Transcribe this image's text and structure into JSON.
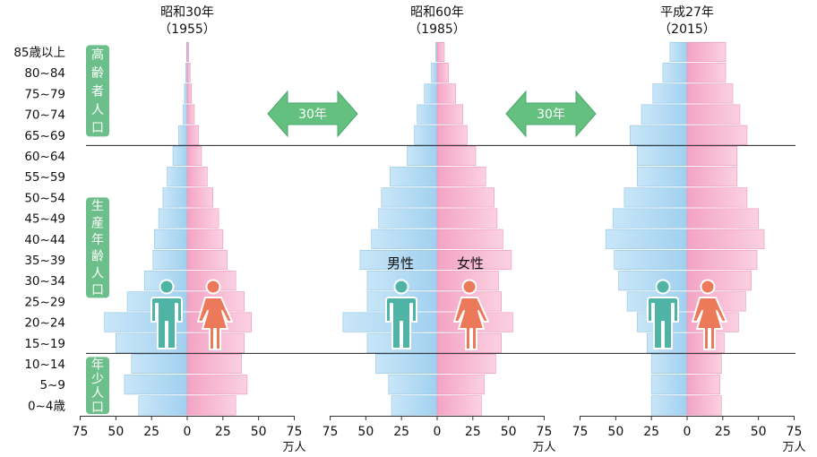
{
  "age_groups": [
    "0~4歳",
    "5~9",
    "10~14",
    "15~19",
    "20~24",
    "25~29",
    "30~34",
    "35~39",
    "40~44",
    "45~49",
    "50~54",
    "55~59",
    "60~64",
    "65~69",
    "70~74",
    "75~79",
    "80~84",
    "85歳以上"
  ],
  "category_labels": {
    "elderly": [
      "高",
      "齢",
      "者",
      "人",
      "口"
    ],
    "working": [
      "生",
      "産",
      "年",
      "齢",
      "人",
      "口"
    ],
    "young": [
      "年",
      "少",
      "人",
      "口"
    ]
  },
  "arrows": [
    "30年",
    "30年"
  ],
  "gender_labels": {
    "male": "男性",
    "female": "女性"
  },
  "axis": {
    "ticks": [
      "75",
      "50",
      "25",
      "0",
      "25",
      "50",
      "75"
    ],
    "unit": "万人"
  },
  "colors": {
    "male": "#a9d6f2",
    "female": "#f4a8c8",
    "category": "#6cbf8a",
    "arrow": "#63c07f",
    "male_figure": "#4fb3a5",
    "female_figure": "#ec7a5a"
  },
  "chart_data": [
    {
      "type": "bar",
      "title_line1": "昭和30年",
      "title_line2": "（1955）",
      "categories": [
        "0~4歳",
        "5~9",
        "10~14",
        "15~19",
        "20~24",
        "25~29",
        "30~34",
        "35~39",
        "40~44",
        "45~49",
        "50~54",
        "55~59",
        "60~64",
        "65~69",
        "70~74",
        "75~79",
        "80~84",
        "85歳以上"
      ],
      "series": [
        {
          "name": "男性",
          "values": [
            -34,
            -44,
            -39,
            -50,
            -58,
            -42,
            -30,
            -24,
            -23,
            -20,
            -17,
            -14,
            -10,
            -6,
            -3,
            -2,
            -1,
            -0.5
          ]
        },
        {
          "name": "女性",
          "values": [
            34,
            42,
            38,
            40,
            45,
            40,
            34,
            28,
            25,
            22,
            18,
            14,
            10,
            8,
            5,
            3,
            2,
            1
          ]
        }
      ],
      "xlim": [
        -75,
        75
      ],
      "xlabel": "万人"
    },
    {
      "type": "bar",
      "title_line1": "昭和60年",
      "title_line2": "（1985）",
      "categories": [
        "0~4歳",
        "5~9",
        "10~14",
        "15~19",
        "20~24",
        "25~29",
        "30~34",
        "35~39",
        "40~44",
        "45~49",
        "50~54",
        "55~59",
        "60~64",
        "65~69",
        "70~74",
        "75~79",
        "80~84",
        "85歳以上"
      ],
      "series": [
        {
          "name": "男性",
          "values": [
            -32,
            -34,
            -43,
            -49,
            -66,
            -49,
            -49,
            -54,
            -46,
            -41,
            -39,
            -33,
            -21,
            -16,
            -14,
            -9,
            -4,
            -1
          ]
        },
        {
          "name": "女性",
          "values": [
            31,
            33,
            41,
            45,
            53,
            45,
            43,
            52,
            46,
            42,
            40,
            34,
            27,
            21,
            18,
            13,
            8,
            5
          ]
        }
      ],
      "xlim": [
        -75,
        75
      ],
      "xlabel": "万人"
    },
    {
      "type": "bar",
      "title_line1": "平成27年",
      "title_line2": "（2015）",
      "categories": [
        "0~4歳",
        "5~9",
        "10~14",
        "15~19",
        "20~24",
        "25~29",
        "30~34",
        "35~39",
        "40~44",
        "45~49",
        "50~54",
        "55~59",
        "60~64",
        "65~69",
        "70~74",
        "75~79",
        "80~84",
        "85歳以上"
      ],
      "series": [
        {
          "name": "男性",
          "values": [
            -25,
            -25,
            -25,
            -28,
            -35,
            -42,
            -48,
            -51,
            -57,
            -52,
            -44,
            -35,
            -35,
            -40,
            -32,
            -24,
            -17,
            -12
          ]
        },
        {
          "name": "女性",
          "values": [
            24,
            23,
            24,
            26,
            36,
            41,
            45,
            49,
            54,
            50,
            42,
            35,
            35,
            42,
            37,
            32,
            27,
            27
          ]
        }
      ],
      "xlim": [
        -75,
        75
      ],
      "xlabel": "万人"
    }
  ]
}
